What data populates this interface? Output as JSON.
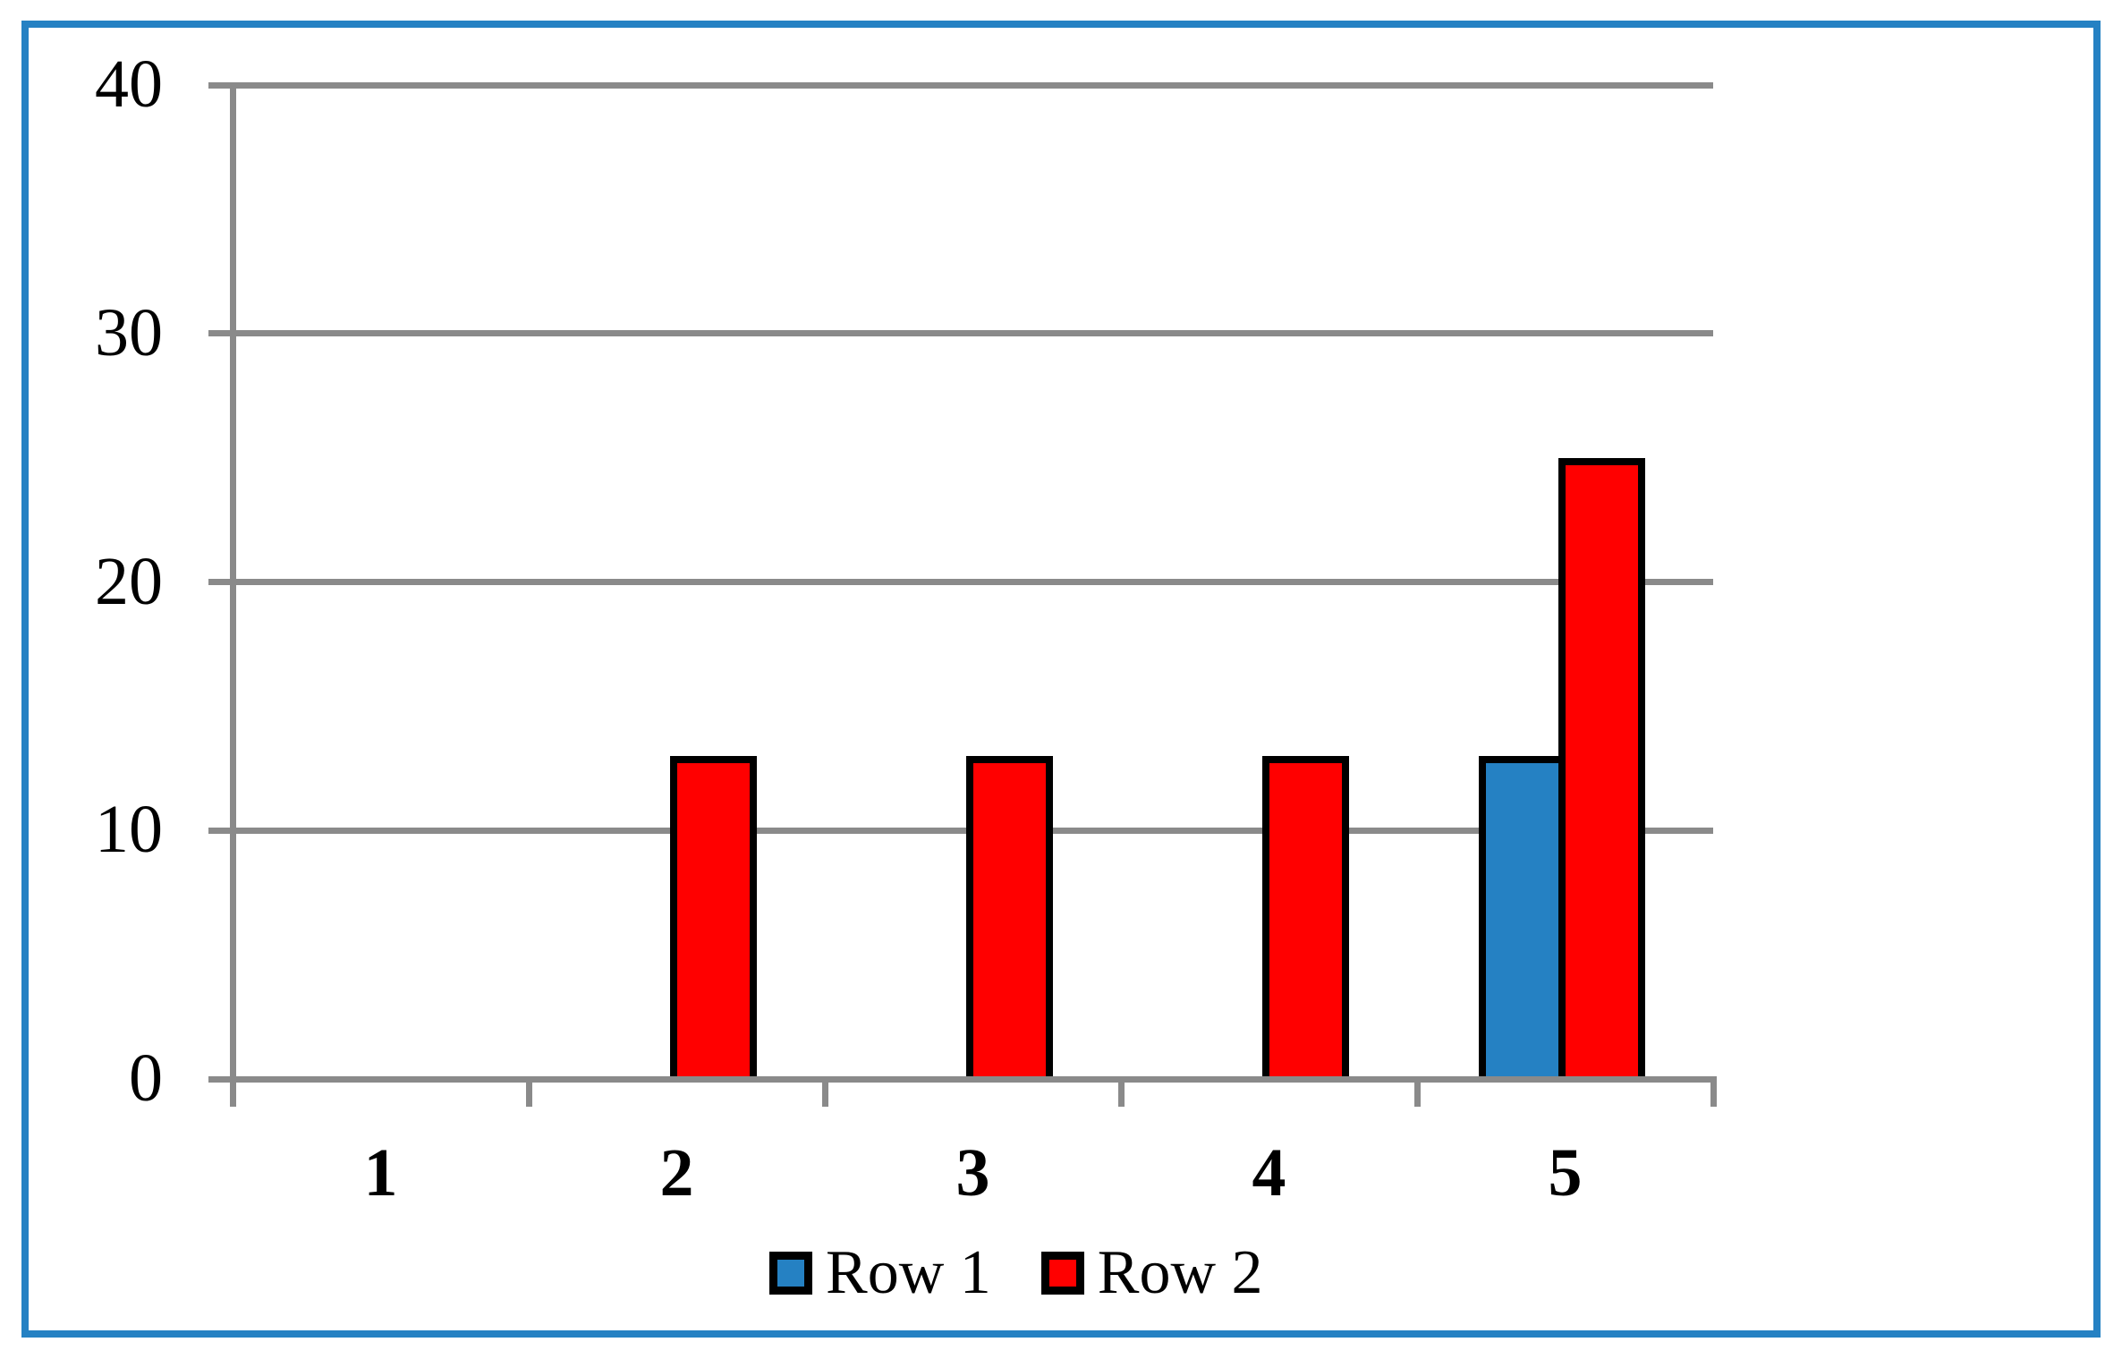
{
  "frame": {
    "border_color": "#2581C3",
    "background": "#ffffff"
  },
  "chart_data": {
    "type": "bar",
    "title": "",
    "xlabel": "",
    "ylabel": "",
    "categories": [
      "1",
      "2",
      "3",
      "4",
      "5"
    ],
    "series": [
      {
        "name": "Row 1",
        "color": "#2581C3",
        "values": [
          0,
          0,
          0,
          0,
          13
        ]
      },
      {
        "name": "Row 2",
        "color": "#FF0000",
        "values": [
          0,
          13,
          13,
          13,
          25
        ]
      }
    ],
    "ylim": [
      0,
      40
    ],
    "yticks": [
      0,
      10,
      20,
      30,
      40
    ],
    "ytick_labels": [
      "0",
      "10",
      "20",
      "30",
      "40"
    ],
    "grid": true,
    "gridline_color": "#8A8A8A",
    "axis_color": "#8A8A8A",
    "bar_border_color": "#000000",
    "text_color": "#000000",
    "legend_position": "bottom",
    "legend": [
      "Row 1",
      "Row 2"
    ]
  }
}
